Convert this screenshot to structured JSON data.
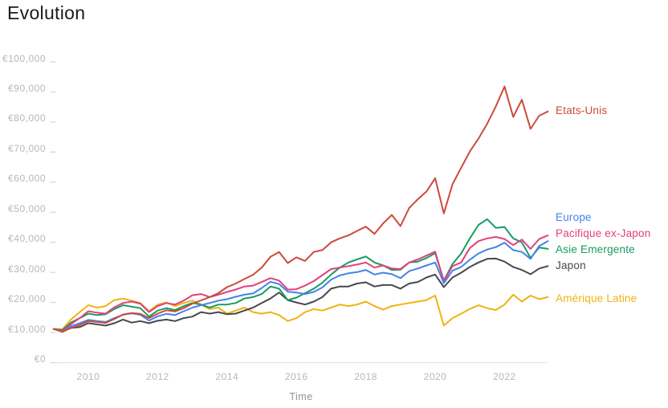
{
  "page": {
    "title": "Evolution"
  },
  "colors": {
    "background": "#ffffff",
    "title_text": "#181b22",
    "axis_text": "#b3b8bb",
    "time_label": "#8e9398",
    "axis_line": "#e3e4e6",
    "tick_dash": "#d8dadb"
  },
  "chart_data": {
    "type": "line",
    "title": "Evolution",
    "xlabel": "Time",
    "ylabel": "",
    "grid": false,
    "legend_position": "right",
    "xlim": [
      2009,
      2023.4
    ],
    "ylim": [
      0,
      100000
    ],
    "x_ticks": [
      {
        "value": 2010,
        "label": "2010"
      },
      {
        "value": 2012,
        "label": "2012"
      },
      {
        "value": 2014,
        "label": "2014"
      },
      {
        "value": 2016,
        "label": "2016"
      },
      {
        "value": 2018,
        "label": "2018"
      },
      {
        "value": 2020,
        "label": "2020"
      },
      {
        "value": 2022,
        "label": "2022"
      }
    ],
    "y_ticks": [
      {
        "value": 0,
        "label": "€0"
      },
      {
        "value": 10000,
        "label": "€10,000"
      },
      {
        "value": 20000,
        "label": "€20,000"
      },
      {
        "value": 30000,
        "label": "€30,000"
      },
      {
        "value": 40000,
        "label": "€40,000"
      },
      {
        "value": 50000,
        "label": "€50,000"
      },
      {
        "value": 60000,
        "label": "€60,000"
      },
      {
        "value": 70000,
        "label": "€70,000"
      },
      {
        "value": 80000,
        "label": "€80,000"
      },
      {
        "value": 90000,
        "label": "€90,000"
      },
      {
        "value": 100000,
        "label": "€100,000"
      }
    ],
    "x": [
      2009,
      2009.25,
      2009.5,
      2009.75,
      2010,
      2010.25,
      2010.5,
      2010.75,
      2011,
      2011.25,
      2011.5,
      2011.75,
      2012,
      2012.25,
      2012.5,
      2012.75,
      2013,
      2013.25,
      2013.5,
      2013.75,
      2014,
      2014.25,
      2014.5,
      2014.75,
      2015,
      2015.25,
      2015.5,
      2015.75,
      2016,
      2016.25,
      2016.5,
      2016.75,
      2017,
      2017.25,
      2017.5,
      2017.75,
      2018,
      2018.25,
      2018.5,
      2018.75,
      2019,
      2019.25,
      2019.5,
      2019.75,
      2020,
      2020.25,
      2020.5,
      2020.75,
      2021,
      2021.25,
      2021.5,
      2021.75,
      2022,
      2022.25,
      2022.5,
      2022.75,
      2023,
      2023.25
    ],
    "series": [
      {
        "name": "Etats-Unis",
        "color": "#cd4a39",
        "values": [
          10000,
          9000,
          10300,
          11300,
          12600,
          12300,
          12000,
          13300,
          14800,
          15300,
          15000,
          13600,
          15100,
          16200,
          15800,
          16900,
          18400,
          19500,
          20600,
          21900,
          23900,
          25100,
          26600,
          28000,
          30400,
          34000,
          35600,
          31900,
          33800,
          32600,
          35600,
          36200,
          38800,
          40100,
          41100,
          42600,
          44000,
          41600,
          45100,
          47900,
          44200,
          50200,
          53100,
          55700,
          60100,
          48400,
          58100,
          63600,
          69000,
          73300,
          78200,
          84000,
          90600,
          80500,
          86200,
          76500,
          80900,
          82300
        ]
      },
      {
        "name": "Europe",
        "color": "#4682e8",
        "values": [
          10000,
          9100,
          10900,
          11900,
          13000,
          12600,
          12300,
          13600,
          14700,
          15200,
          14700,
          12800,
          14200,
          15000,
          14600,
          15900,
          17100,
          17900,
          18600,
          19400,
          19900,
          20700,
          21400,
          21800,
          23600,
          25700,
          24900,
          22400,
          22100,
          21600,
          22300,
          23800,
          26400,
          27800,
          28500,
          28900,
          29600,
          28100,
          28700,
          28200,
          26900,
          29200,
          30100,
          31100,
          32100,
          25200,
          29400,
          30600,
          33000,
          35100,
          36400,
          37200,
          38700,
          36200,
          35600,
          33300,
          37600,
          39200
        ]
      },
      {
        "name": "Pacifique ex-Japon",
        "color": "#e2407e",
        "values": [
          10000,
          9300,
          11600,
          13600,
          15900,
          15400,
          15100,
          17200,
          18600,
          19100,
          18400,
          15600,
          17600,
          18600,
          18100,
          19400,
          21200,
          21600,
          20600,
          21400,
          22300,
          23100,
          24100,
          24400,
          25600,
          26900,
          26100,
          23100,
          23200,
          24400,
          25900,
          27900,
          29900,
          30400,
          30900,
          31400,
          32100,
          30400,
          31100,
          30100,
          29900,
          32100,
          33100,
          34400,
          35700,
          25900,
          30900,
          32100,
          36900,
          39200,
          40100,
          40600,
          39900,
          37900,
          39700,
          36600,
          39900,
          41100
        ]
      },
      {
        "name": "Asie Emergente",
        "color": "#169c60",
        "values": [
          10000,
          9600,
          12100,
          13600,
          15100,
          14600,
          14900,
          16600,
          17900,
          17400,
          16900,
          14100,
          16100,
          16900,
          16300,
          17600,
          18600,
          18100,
          17100,
          18100,
          18100,
          18600,
          20100,
          20600,
          21600,
          24100,
          23400,
          19600,
          20400,
          21900,
          23400,
          25400,
          28100,
          30400,
          32100,
          33100,
          34100,
          32100,
          31100,
          29600,
          29700,
          32100,
          32400,
          33600,
          35200,
          26100,
          31600,
          35100,
          40100,
          44600,
          46500,
          43600,
          43900,
          40100,
          38800,
          33600,
          37100,
          36600
        ]
      },
      {
        "name": "Japon",
        "color": "#47494c",
        "values": [
          10000,
          9300,
          10300,
          10600,
          11900,
          11500,
          11100,
          11900,
          13100,
          12100,
          12600,
          11900,
          12700,
          13100,
          12600,
          13600,
          14100,
          15600,
          15100,
          15600,
          14900,
          15100,
          16100,
          17100,
          18600,
          20100,
          22100,
          19600,
          18800,
          18100,
          19100,
          20600,
          23400,
          24100,
          24100,
          25100,
          25500,
          24100,
          24600,
          24600,
          23400,
          25100,
          25600,
          27100,
          28100,
          23900,
          27100,
          28700,
          30600,
          32100,
          33300,
          33400,
          32400,
          30600,
          29600,
          28200,
          30100,
          30900
        ]
      },
      {
        "name": "Amérique Latine",
        "color": "#efb310",
        "values": [
          10000,
          9900,
          13100,
          15600,
          17900,
          17100,
          17600,
          19600,
          20100,
          19400,
          18600,
          15900,
          18100,
          18800,
          17600,
          18600,
          19400,
          18100,
          16600,
          17100,
          15100,
          16100,
          17100,
          15600,
          15100,
          15600,
          14600,
          12600,
          13600,
          15600,
          16600,
          16100,
          17100,
          18100,
          17600,
          18100,
          19100,
          17600,
          16400,
          17600,
          18100,
          18600,
          19100,
          19600,
          21100,
          11100,
          13600,
          15100,
          16600,
          17900,
          16900,
          16300,
          18100,
          21400,
          19100,
          21100,
          19900,
          20600
        ]
      }
    ]
  }
}
